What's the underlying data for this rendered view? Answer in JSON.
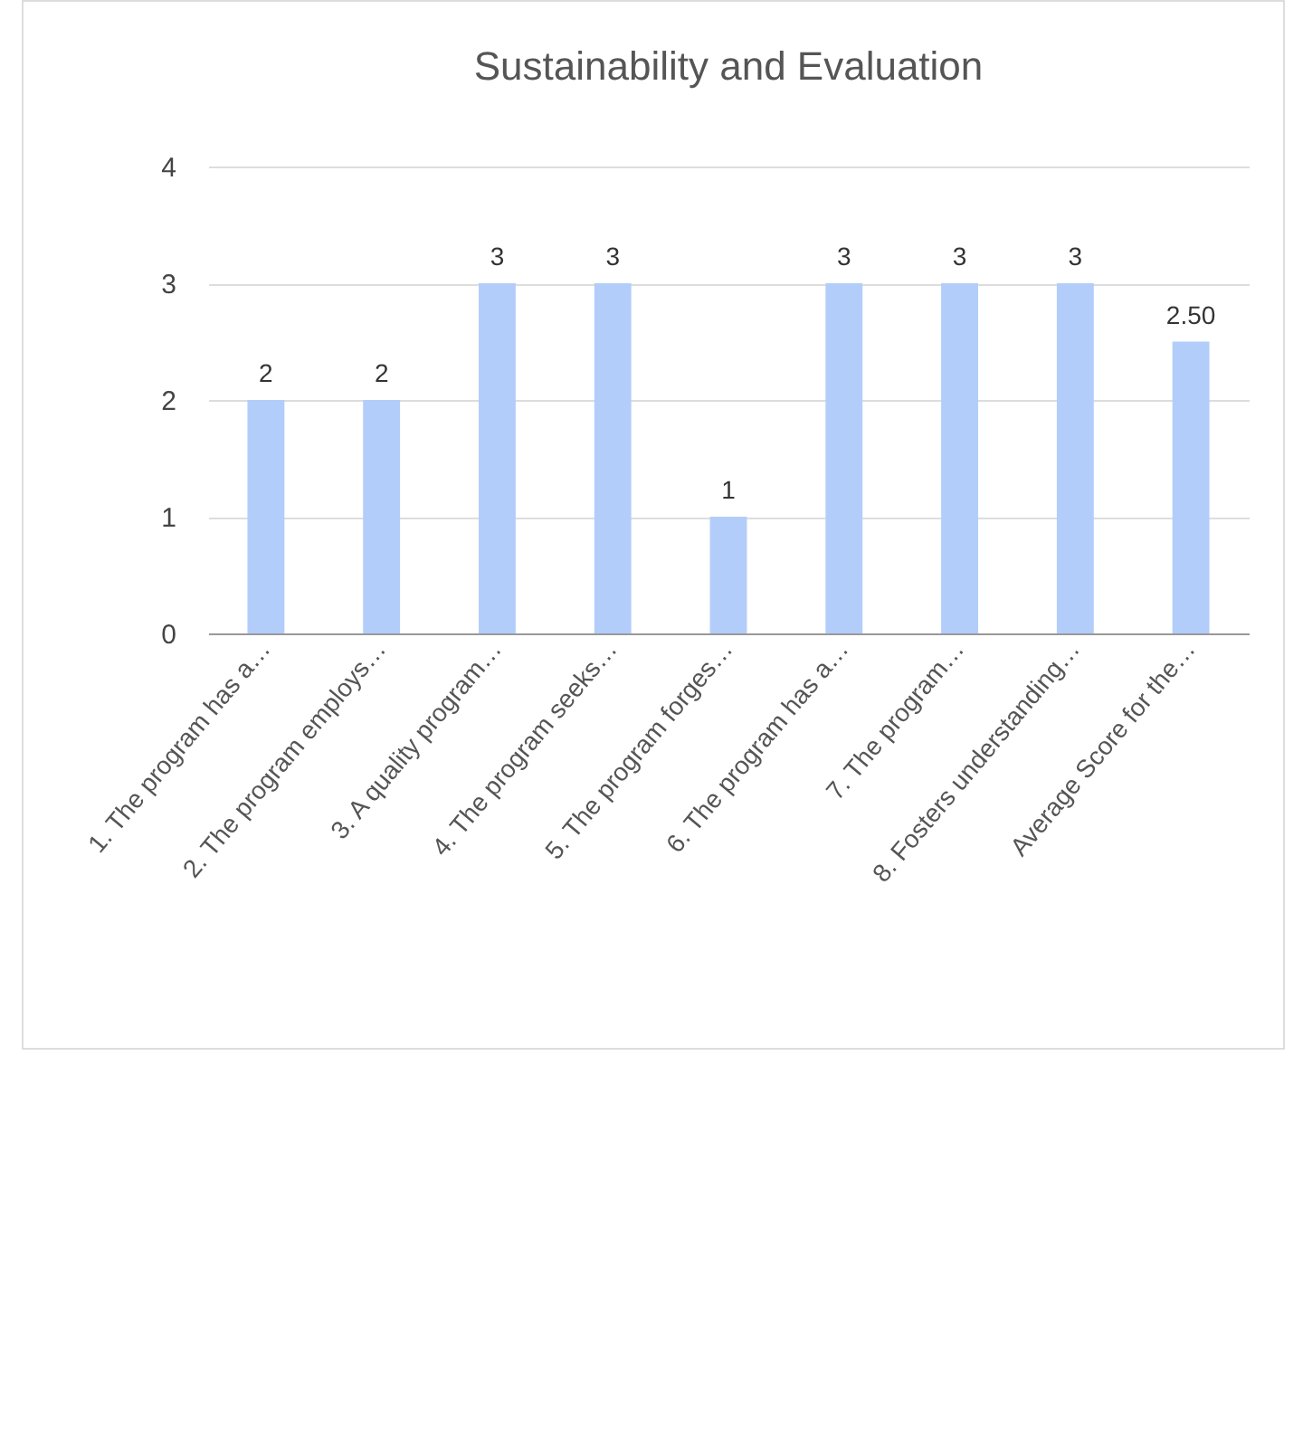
{
  "chart_data": {
    "type": "bar",
    "title": "Sustainability and Evaluation",
    "categories": [
      "1. The program has a…",
      "2. The program employs…",
      "3. A quality program…",
      "4. The program seeks…",
      "5. The program forges…",
      "6. The program has a…",
      "7. The program…",
      "8. Fosters understanding…",
      "Average Score for the…"
    ],
    "values": [
      2,
      2,
      3,
      3,
      1,
      3,
      3,
      3,
      2.5
    ],
    "value_labels": [
      "2",
      "2",
      "3",
      "3",
      "1",
      "3",
      "3",
      "3",
      "2.50"
    ],
    "color": "#b3cdfb",
    "ylim": [
      0,
      4
    ],
    "yticks": [
      0,
      1,
      2,
      3,
      4
    ],
    "grid": "y"
  }
}
